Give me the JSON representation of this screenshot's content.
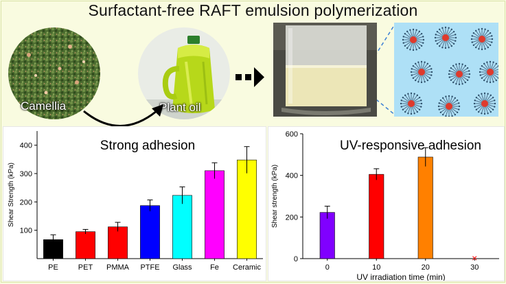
{
  "title": "Surfactant-free RAFT emulsion polymerization",
  "labels": {
    "camellia": "Camellia",
    "plant_oil": "Plant oil"
  },
  "colors": {
    "background": "#f9fbe0",
    "water_blue": "#aee0f6",
    "micelle_core": "#e03a2c"
  },
  "chart_data": [
    {
      "type": "bar",
      "title": "Strong adhesion",
      "xlabel": "",
      "ylabel": "Shear Strength (kPa)",
      "ylim": [
        0,
        450
      ],
      "yticks": [
        100,
        200,
        300,
        400
      ],
      "categories": [
        "PE",
        "PET",
        "PMMA",
        "PTFE",
        "Glass",
        "Fe",
        "Ceramic"
      ],
      "values": [
        67,
        95,
        112,
        187,
        223,
        310,
        348
      ],
      "errors": [
        17,
        8,
        16,
        20,
        30,
        28,
        47
      ],
      "colors": [
        "#000000",
        "#ff0000",
        "#ff0000",
        "#0000ff",
        "#00ffff",
        "#ff00ff",
        "#ffff00"
      ]
    },
    {
      "type": "bar",
      "title": "UV-responsive adhesion",
      "xlabel": "UV irradiation time (min)",
      "ylabel": "Shear strength (kPa)",
      "ylim": [
        0,
        600
      ],
      "yticks": [
        0,
        200,
        400,
        600
      ],
      "categories": [
        "0",
        "10",
        "20",
        "30"
      ],
      "values": [
        222,
        405,
        488,
        0
      ],
      "errors": [
        30,
        27,
        45,
        0
      ],
      "colors": [
        "#8000ff",
        "#ff0000",
        "#ff8000",
        "#ff0000"
      ],
      "annotations": [
        "×"
      ]
    }
  ]
}
